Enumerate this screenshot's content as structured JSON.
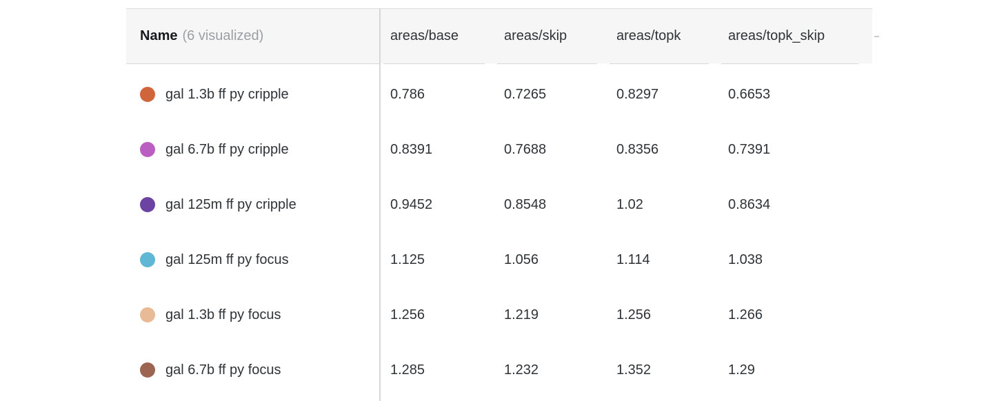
{
  "table": {
    "header": {
      "name_label": "Name",
      "name_sublabel": "(6 visualized)",
      "columns": [
        "areas/base",
        "areas/skip",
        "areas/topk",
        "areas/topk_skip"
      ],
      "clipped_next_column_indicator": "-",
      "background_color": "#f6f6f7"
    },
    "rows": [
      {
        "name": "gal 1.3b ff py cripple",
        "dot_color": "#d0653c",
        "values": [
          "0.786",
          "0.7265",
          "0.8297",
          "0.6653"
        ]
      },
      {
        "name": "gal 6.7b ff py cripple",
        "dot_color": "#bb5ec1",
        "values": [
          "0.8391",
          "0.7688",
          "0.8356",
          "0.7391"
        ]
      },
      {
        "name": "gal 125m ff py cripple",
        "dot_color": "#6c42a3",
        "values": [
          "0.9452",
          "0.8548",
          "1.02",
          "0.8634"
        ]
      },
      {
        "name": "gal 125m ff py focus",
        "dot_color": "#60b7d5",
        "values": [
          "1.125",
          "1.056",
          "1.114",
          "1.038"
        ]
      },
      {
        "name": "gal 1.3b ff py focus",
        "dot_color": "#e9ba96",
        "values": [
          "1.256",
          "1.219",
          "1.256",
          "1.266"
        ]
      },
      {
        "name": "gal 6.7b ff py focus",
        "dot_color": "#9c6551",
        "values": [
          "1.285",
          "1.232",
          "1.352",
          "1.29"
        ]
      }
    ]
  }
}
